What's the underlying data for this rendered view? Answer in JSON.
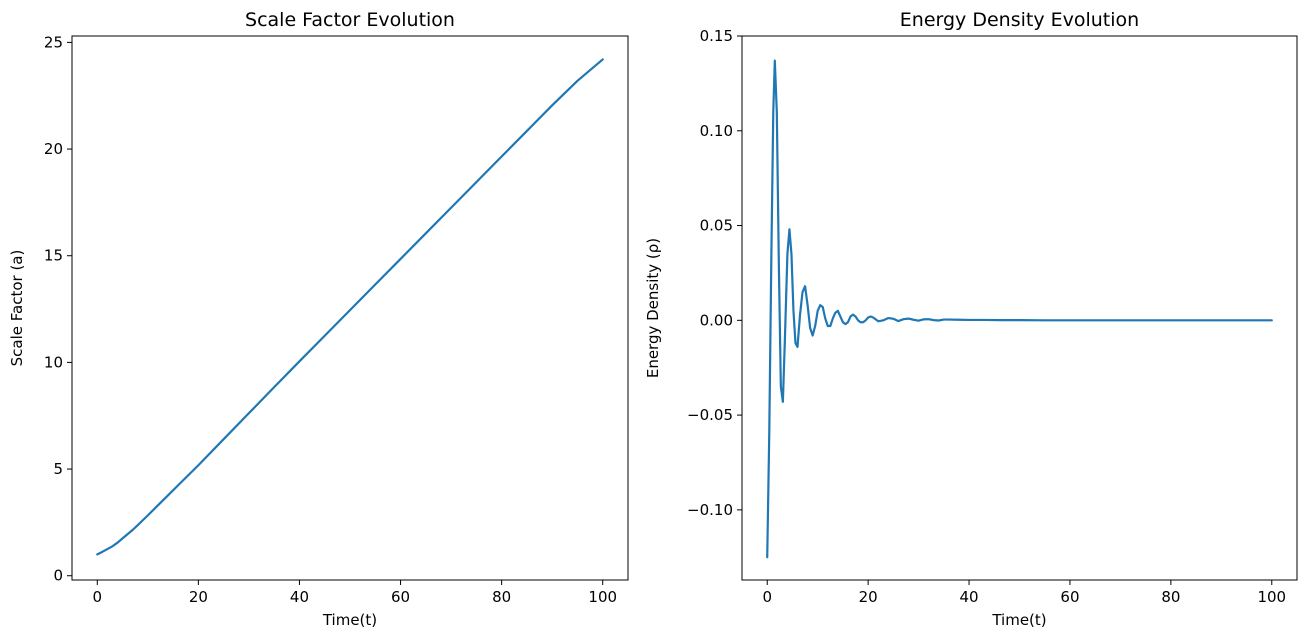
{
  "chart_data": [
    {
      "type": "line",
      "title": "Scale Factor Evolution",
      "xlabel": "Time(t)",
      "ylabel": "Scale Factor (a)",
      "xlim": [
        -5,
        105
      ],
      "ylim": [
        -0.2,
        25.3
      ],
      "xticks": [
        0,
        20,
        40,
        60,
        80,
        100
      ],
      "xtick_labels": [
        "0",
        "20",
        "40",
        "60",
        "80",
        "100"
      ],
      "yticks": [
        0,
        5,
        10,
        15,
        20,
        25
      ],
      "ytick_labels": [
        "0",
        "5",
        "10",
        "15",
        "20",
        "25"
      ],
      "grid": false,
      "color": "#1f77b4",
      "series": [
        {
          "x": [
            0,
            1,
            2,
            3,
            4,
            5,
            6,
            7,
            8,
            9,
            10,
            12,
            14,
            16,
            18,
            20,
            25,
            30,
            35,
            40,
            45,
            50,
            55,
            60,
            65,
            70,
            75,
            80,
            85,
            90,
            95,
            100
          ],
          "y": [
            1.0,
            1.12,
            1.25,
            1.38,
            1.55,
            1.75,
            1.95,
            2.15,
            2.37,
            2.6,
            2.83,
            3.3,
            3.77,
            4.24,
            4.71,
            5.18,
            6.4,
            7.62,
            8.84,
            10.05,
            11.25,
            12.45,
            13.65,
            14.85,
            16.05,
            17.25,
            18.45,
            19.65,
            20.85,
            22.05,
            23.2,
            24.2
          ]
        }
      ]
    },
    {
      "type": "line",
      "title": "Energy Density Evolution",
      "xlabel": "Time(t)",
      "ylabel": "Energy Density (ρ)",
      "xlim": [
        -5,
        105
      ],
      "ylim": [
        -0.137,
        0.15
      ],
      "xticks": [
        0,
        20,
        40,
        60,
        80,
        100
      ],
      "xtick_labels": [
        "0",
        "20",
        "40",
        "60",
        "80",
        "100"
      ],
      "yticks": [
        -0.1,
        -0.05,
        0,
        0.05,
        0.1,
        0.15
      ],
      "ytick_labels": [
        "−0.10",
        "−0.05",
        "0.00",
        "0.05",
        "0.10",
        "0.15"
      ],
      "grid": false,
      "color": "#1f77b4",
      "series": [
        {
          "x": [
            0,
            0.4,
            0.8,
            1.2,
            1.5,
            1.9,
            2.3,
            2.7,
            3.1,
            3.5,
            4.0,
            4.4,
            4.8,
            5.2,
            5.6,
            6.0,
            6.5,
            7.0,
            7.5,
            8.0,
            8.5,
            9.0,
            9.5,
            10.0,
            10.5,
            11.0,
            11.5,
            12.0,
            12.5,
            13.0,
            13.5,
            14.0,
            14.5,
            15.0,
            15.5,
            16.0,
            16.5,
            17.0,
            17.5,
            18.0,
            18.5,
            19.0,
            19.5,
            20.0,
            20.5,
            21.0,
            22.0,
            23.0,
            24.0,
            25.0,
            26.0,
            27.0,
            28.0,
            29.0,
            30.0,
            31.0,
            32.0,
            33.0,
            34.0,
            35.0,
            36.0,
            38.0,
            40.0,
            43.0,
            46.0,
            50.0,
            55.0,
            60.0,
            70.0,
            80.0,
            90.0,
            100.0
          ],
          "y": [
            -0.125,
            -0.06,
            0.03,
            0.11,
            0.137,
            0.11,
            0.03,
            -0.035,
            -0.043,
            -0.01,
            0.035,
            0.048,
            0.035,
            0.005,
            -0.012,
            -0.014,
            0.003,
            0.015,
            0.018,
            0.008,
            -0.004,
            -0.008,
            -0.003,
            0.005,
            0.008,
            0.007,
            0.001,
            -0.003,
            -0.003,
            0.001,
            0.004,
            0.005,
            0.002,
            -0.001,
            -0.002,
            -0.001,
            0.002,
            0.003,
            0.002,
            0.0,
            -0.001,
            -0.001,
            0.0,
            0.0015,
            0.002,
            0.0015,
            -0.0005,
            0.0,
            0.0012,
            0.0008,
            -0.0004,
            0.0006,
            0.0009,
            0.0003,
            -0.0002,
            0.0005,
            0.0006,
            0.0001,
            -0.0001,
            0.0004,
            0.0004,
            0.0003,
            0.0002,
            0.0002,
            0.0001,
            0.0001,
            0.0,
            0.0,
            0.0,
            0.0,
            0.0,
            0.0
          ]
        }
      ]
    }
  ]
}
